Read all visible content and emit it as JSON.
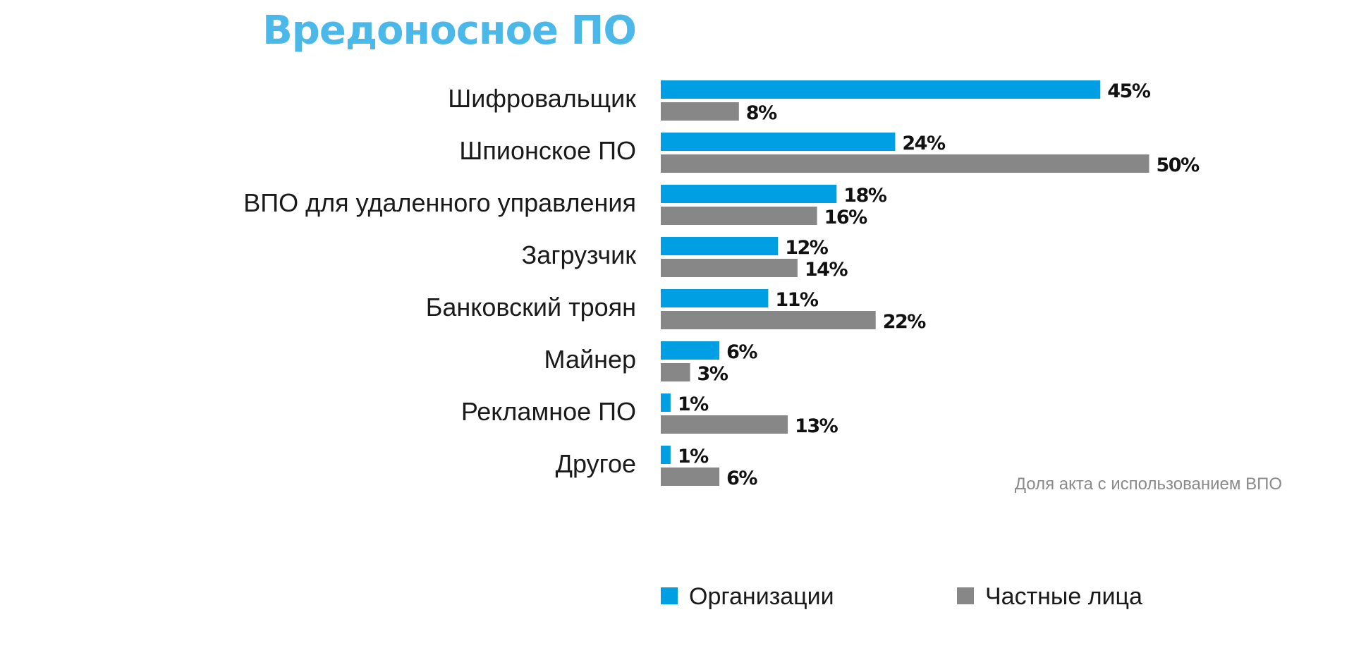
{
  "chart_data": {
    "type": "bar",
    "orientation": "horizontal",
    "title": "Вредоносное ПО",
    "categories": [
      "Шифровальщик",
      "Шпионское ПО",
      "ВПО для удаленного управления",
      "Загрузчик",
      "Банковский троян",
      "Майнер",
      "Рекламное ПО",
      "Другое"
    ],
    "series": [
      {
        "name": "Организации",
        "color": "#009fe3",
        "values": [
          45,
          24,
          18,
          12,
          11,
          6,
          1,
          1
        ]
      },
      {
        "name": "Частные лица",
        "color": "#878787",
        "values": [
          8,
          50,
          16,
          14,
          22,
          3,
          13,
          6
        ]
      }
    ],
    "value_suffix": "%",
    "xlim": [
      0,
      50
    ],
    "grid": false,
    "legend_position": "bottom",
    "note": "Доля акта с использованием ВПО",
    "title_color": "#4ab8e8"
  }
}
